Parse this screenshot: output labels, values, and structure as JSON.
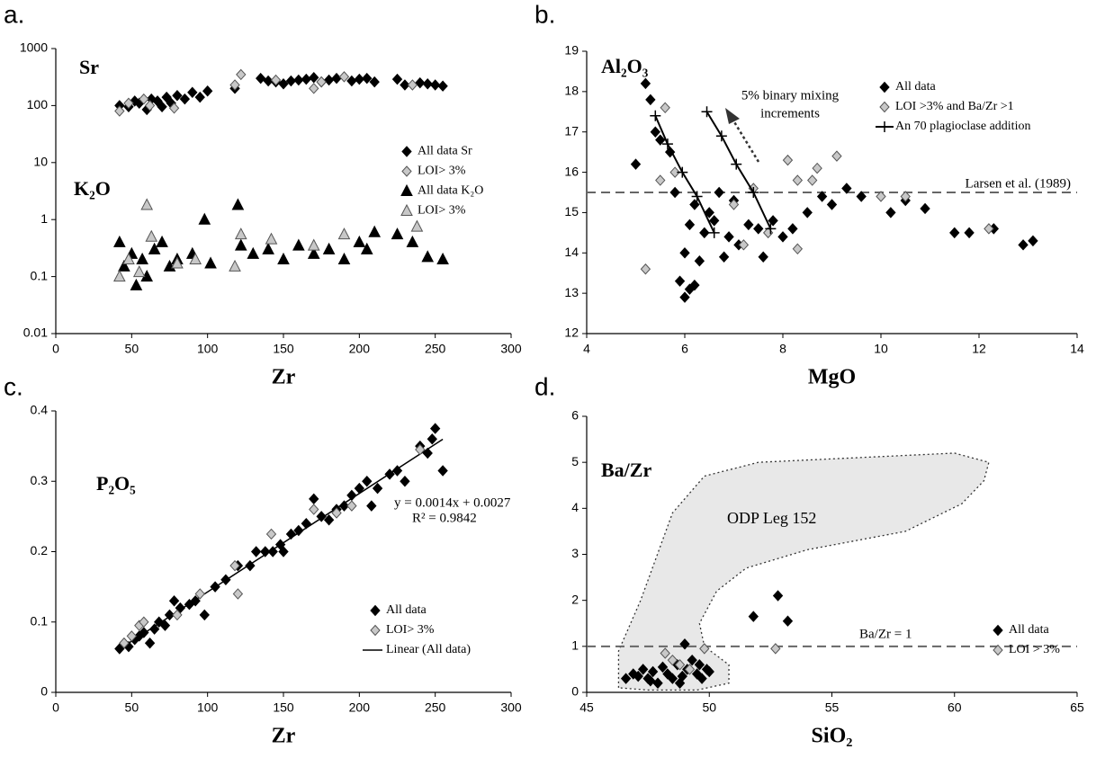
{
  "chart_data": [
    {
      "type": "scatter",
      "label": "a.",
      "xlabel": "Zr",
      "ylog": true,
      "legend": "center-right",
      "xlim": [
        0,
        300
      ],
      "xticks": [
        0,
        50,
        100,
        150,
        200,
        250,
        300
      ],
      "ylim": [
        0.01,
        1000
      ],
      "yticks": [
        0.01,
        0.1,
        1,
        10,
        100,
        1000
      ],
      "annotations": [
        "Sr",
        "K₂O"
      ],
      "series": [
        {
          "name": "All data Sr",
          "marker": "diamond",
          "color": "#000000",
          "x": [
            42,
            48,
            52,
            55,
            60,
            63,
            67,
            70,
            73,
            76,
            80,
            85,
            90,
            95,
            100,
            118,
            135,
            140,
            145,
            150,
            155,
            160,
            165,
            170,
            175,
            180,
            185,
            195,
            200,
            205,
            210,
            225,
            230,
            240,
            245,
            250,
            255
          ],
          "values": [
            100,
            95,
            120,
            110,
            85,
            130,
            120,
            95,
            140,
            110,
            150,
            130,
            170,
            140,
            180,
            200,
            300,
            270,
            260,
            240,
            270,
            280,
            290,
            310,
            260,
            280,
            300,
            270,
            290,
            300,
            260,
            290,
            230,
            250,
            240,
            230,
            220
          ]
        },
        {
          "name": "LOI> 3%",
          "marker": "diamond",
          "color": "#c8c8c8",
          "x": [
            42,
            48,
            58,
            62,
            78,
            118,
            122,
            145,
            170,
            175,
            190,
            235
          ],
          "values": [
            80,
            110,
            130,
            100,
            90,
            230,
            350,
            280,
            200,
            260,
            320,
            230
          ]
        },
        {
          "name": "All data K₂O",
          "marker": "triangle",
          "color": "#000000",
          "x": [
            42,
            45,
            50,
            53,
            57,
            60,
            65,
            70,
            75,
            80,
            90,
            98,
            102,
            120,
            122,
            130,
            140,
            150,
            160,
            170,
            180,
            190,
            200,
            205,
            210,
            225,
            235,
            245,
            255
          ],
          "values": [
            0.4,
            0.15,
            0.25,
            0.07,
            0.2,
            0.1,
            0.3,
            0.4,
            0.15,
            0.2,
            0.25,
            1,
            0.17,
            1.8,
            0.35,
            0.25,
            0.3,
            0.2,
            0.35,
            0.25,
            0.3,
            0.2,
            0.4,
            0.3,
            0.6,
            0.55,
            0.4,
            0.22,
            0.2
          ]
        },
        {
          "name": "LOI> 3%",
          "marker": "triangle",
          "color": "#c8c8c8",
          "x": [
            42,
            48,
            55,
            60,
            63,
            80,
            92,
            118,
            122,
            142,
            170,
            190,
            238
          ],
          "values": [
            0.1,
            0.2,
            0.12,
            1.8,
            0.5,
            0.17,
            0.2,
            0.15,
            0.55,
            0.45,
            0.35,
            0.55,
            0.75
          ]
        }
      ]
    },
    {
      "type": "scatter",
      "label": "b.",
      "xlabel": "MgO",
      "legend": "upper-right",
      "xlim": [
        4,
        14
      ],
      "xticks": [
        4,
        6,
        8,
        10,
        12,
        14
      ],
      "ylim": [
        12,
        19
      ],
      "yticks": [
        12,
        13,
        14,
        15,
        16,
        17,
        18,
        19
      ],
      "hline": 15.5,
      "annotations": [
        "Al₂O₃",
        "5% binary mixing",
        "increments",
        "Larsen et al. (1989)"
      ],
      "series": [
        {
          "name": "All data",
          "marker": "diamond",
          "color": "#000000",
          "x": [
            5.0,
            5.2,
            5.3,
            5.4,
            5.5,
            5.7,
            5.8,
            5.9,
            6.0,
            6.1,
            6.2,
            6.3,
            6.4,
            6.5,
            6.6,
            6.7,
            6.8,
            6.9,
            7.0,
            7.1,
            7.3,
            7.5,
            7.6,
            7.8,
            8.0,
            8.2,
            8.5,
            8.8,
            9.0,
            9.3,
            9.6,
            10.2,
            10.5,
            10.9,
            11.5,
            11.8,
            12.3,
            12.9,
            13.1,
            6.0,
            6.1,
            6.2
          ],
          "values": [
            16.2,
            18.2,
            17.8,
            17.0,
            16.8,
            16.5,
            15.5,
            13.3,
            12.9,
            13.1,
            13.2,
            13.8,
            14.5,
            15.0,
            14.8,
            15.5,
            13.9,
            14.4,
            15.3,
            14.2,
            14.7,
            14.6,
            13.9,
            14.8,
            14.4,
            14.6,
            15.0,
            15.4,
            15.2,
            15.6,
            15.4,
            15.0,
            15.3,
            15.1,
            14.5,
            14.5,
            14.6,
            14.2,
            14.3,
            14.0,
            14.7,
            15.2
          ]
        },
        {
          "name": "LOI >3% and Ba/Zr >1",
          "marker": "diamond",
          "color": "#c8c8c8",
          "x": [
            5.2,
            5.5,
            5.6,
            5.8,
            7.0,
            7.2,
            7.4,
            7.7,
            8.1,
            8.3,
            8.3,
            8.6,
            8.7,
            9.1,
            10.0,
            10.5,
            12.2
          ],
          "values": [
            13.6,
            15.8,
            17.6,
            16.0,
            15.2,
            14.2,
            15.6,
            14.5,
            16.3,
            14.1,
            15.8,
            15.8,
            16.1,
            16.4,
            15.4,
            15.4,
            14.6
          ]
        },
        {
          "name": "An 70 plagioclase addition",
          "marker": "plus",
          "line": true,
          "color": "#000000",
          "x": [
            5.4,
            5.65,
            5.95,
            6.25,
            6.6,
            null,
            6.45,
            6.75,
            7.05,
            7.4,
            7.75
          ],
          "values": [
            17.4,
            16.7,
            16.0,
            15.4,
            14.5,
            null,
            17.5,
            16.9,
            16.2,
            15.5,
            14.6
          ]
        }
      ]
    },
    {
      "type": "scatter",
      "label": "c.",
      "xlabel": "Zr",
      "legend": "lower-right",
      "xlim": [
        0,
        300
      ],
      "xticks": [
        0,
        50,
        100,
        150,
        200,
        250,
        300
      ],
      "ylim": [
        0,
        0.4
      ],
      "yticks": [
        0,
        0.1,
        0.2,
        0.3,
        0.4
      ],
      "annotations": [
        "P₂O₅",
        "y = 0.0014x + 0.0027",
        "R² = 0.9842"
      ],
      "fit": {
        "name": "Linear (All data)",
        "slope": 0.0014,
        "intercept": 0.0027
      },
      "series": [
        {
          "name": "All data",
          "marker": "diamond",
          "color": "#000000",
          "x": [
            42,
            45,
            48,
            52,
            55,
            58,
            62,
            65,
            68,
            72,
            75,
            78,
            82,
            88,
            92,
            98,
            105,
            112,
            120,
            128,
            132,
            138,
            143,
            148,
            150,
            155,
            160,
            165,
            170,
            175,
            180,
            185,
            190,
            195,
            200,
            205,
            208,
            212,
            220,
            225,
            230,
            240,
            245,
            248,
            250,
            255
          ],
          "values": [
            0.062,
            0.07,
            0.065,
            0.075,
            0.08,
            0.085,
            0.07,
            0.09,
            0.1,
            0.095,
            0.11,
            0.13,
            0.12,
            0.125,
            0.13,
            0.11,
            0.15,
            0.16,
            0.18,
            0.18,
            0.2,
            0.2,
            0.2,
            0.21,
            0.2,
            0.225,
            0.23,
            0.24,
            0.275,
            0.25,
            0.245,
            0.26,
            0.265,
            0.28,
            0.29,
            0.3,
            0.265,
            0.29,
            0.31,
            0.315,
            0.3,
            0.35,
            0.34,
            0.36,
            0.375,
            0.315
          ]
        },
        {
          "name": "LOI> 3%",
          "marker": "diamond",
          "color": "#c8c8c8",
          "x": [
            45,
            50,
            55,
            58,
            80,
            95,
            118,
            120,
            142,
            170,
            185,
            195,
            240
          ],
          "values": [
            0.07,
            0.08,
            0.095,
            0.1,
            0.11,
            0.14,
            0.18,
            0.14,
            0.225,
            0.26,
            0.255,
            0.265,
            0.345
          ]
        }
      ]
    },
    {
      "type": "scatter",
      "label": "d.",
      "xlabel": "SiO₂",
      "legend": "lower-right",
      "xlim": [
        45,
        65
      ],
      "xticks": [
        45,
        50,
        55,
        60,
        65
      ],
      "ylim": [
        0,
        6
      ],
      "yticks": [
        0,
        1,
        2,
        3,
        4,
        5,
        6
      ],
      "hline": 1,
      "annotations": [
        "Ba/Zr",
        "ODP Leg 152",
        "Ba/Zr = 1"
      ],
      "region": {
        "x": [
          46.3,
          46.3,
          47.2,
          48.5,
          49.8,
          52,
          56,
          60,
          61.4,
          61.2,
          60.3,
          58,
          54,
          51.5,
          50.3,
          49.6,
          49.8,
          50.8,
          50.8,
          49.5,
          47.5
        ],
        "values": [
          0.1,
          0.9,
          2.0,
          3.9,
          4.7,
          5.0,
          5.1,
          5.2,
          5.0,
          4.6,
          4.1,
          3.5,
          3.1,
          2.7,
          2.2,
          1.5,
          1.0,
          0.6,
          0.2,
          0.05,
          0.05
        ]
      },
      "series": [
        {
          "name": "All data",
          "marker": "diamond",
          "color": "#000000",
          "x": [
            46.6,
            46.9,
            47.1,
            47.3,
            47.5,
            47.7,
            47.9,
            48.1,
            48.3,
            48.5,
            48.7,
            48.9,
            49.1,
            49.3,
            49.5,
            49.7,
            49.9,
            50.0,
            49.0,
            51.8,
            52.8,
            53.2,
            47.6,
            48.8,
            49.6
          ],
          "values": [
            0.3,
            0.4,
            0.35,
            0.5,
            0.3,
            0.45,
            0.2,
            0.55,
            0.4,
            0.3,
            0.6,
            0.35,
            0.5,
            0.7,
            0.4,
            0.3,
            0.5,
            0.45,
            1.05,
            1.65,
            2.1,
            1.55,
            0.25,
            0.2,
            0.6
          ]
        },
        {
          "name": "LOI > 3%",
          "marker": "diamond",
          "color": "#c8c8c8",
          "x": [
            48.2,
            48.5,
            48.8,
            49.2,
            49.8,
            52.7
          ],
          "values": [
            0.85,
            0.7,
            0.6,
            0.5,
            0.95,
            0.95
          ]
        }
      ]
    }
  ]
}
